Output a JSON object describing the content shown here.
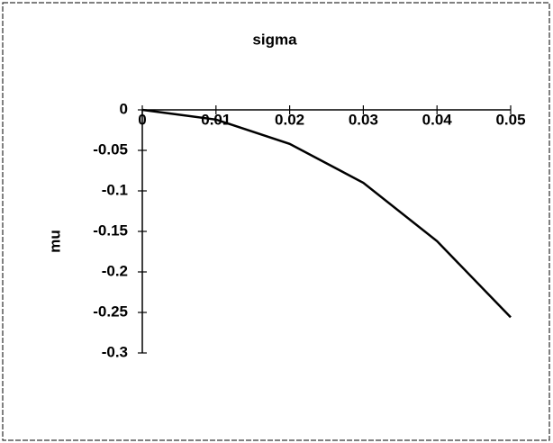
{
  "chart_data": {
    "type": "line",
    "title": "sigma",
    "y_label": "mu",
    "x": [
      0,
      0.01,
      0.02,
      0.03,
      0.04,
      0.05
    ],
    "series": [
      {
        "color": "#000000",
        "values": [
          0,
          -0.012,
          -0.042,
          -0.09,
          -0.162,
          -0.256
        ]
      }
    ],
    "xlim": [
      0,
      0.05
    ],
    "xticks": [
      0,
      0.01,
      0.02,
      0.03,
      0.04,
      0.05
    ],
    "ylim": [
      -0.3,
      0
    ],
    "yticks": [
      0,
      -0.05,
      -0.1,
      -0.15,
      -0.2,
      -0.25,
      -0.3
    ]
  }
}
